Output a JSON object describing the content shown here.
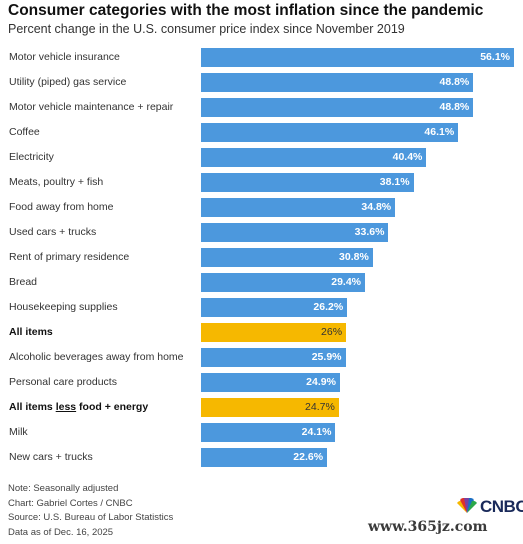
{
  "chart_data": {
    "type": "bar",
    "orientation": "horizontal",
    "title": "Consumer categories with the most inflation since the pandemic",
    "subtitle": "Percent change in the U.S. consumer price index since November 2019",
    "categories": [
      "Motor vehicle insurance",
      "Utility (piped) gas service",
      "Motor vehicle maintenance + repair",
      "Coffee",
      "Electricity",
      "Meats, poultry + fish",
      "Food away from home",
      "Used cars + trucks",
      "Rent of primary residence",
      "Bread",
      "Housekeeping supplies",
      "All items",
      "Alcoholic beverages away from home",
      "Personal care products",
      "All items less food + energy",
      "Milk",
      "New cars + trucks"
    ],
    "values": [
      56.1,
      48.8,
      48.8,
      46.1,
      40.4,
      38.1,
      34.8,
      33.6,
      30.8,
      29.4,
      26.2,
      26.0,
      25.9,
      24.9,
      24.7,
      24.1,
      22.6
    ],
    "value_labels": [
      "56.1%",
      "48.8%",
      "48.8%",
      "46.1%",
      "40.4%",
      "38.1%",
      "34.8%",
      "33.6%",
      "30.8%",
      "29.4%",
      "26.2%",
      "26%",
      "25.9%",
      "24.9%",
      "24.7%",
      "24.1%",
      "22.6%"
    ],
    "highlighted": [
      "All items",
      "All items less food + energy"
    ],
    "xlim": [
      0,
      56.1
    ],
    "grid": false,
    "legend": "none",
    "colors": {
      "bar": "#4c98dd",
      "highlight": "#f6b800"
    }
  },
  "notes": [
    "Note: Seasonally adjusted",
    "Chart: Gabriel Cortes / CNBC",
    "Source: U.S. Bureau of Labor Statistics",
    "Data as of Dec. 16, 2025"
  ],
  "logo": {
    "text": "CNBC",
    "icon": "nbc-peacock-icon"
  },
  "watermark": "www.365jz.com"
}
